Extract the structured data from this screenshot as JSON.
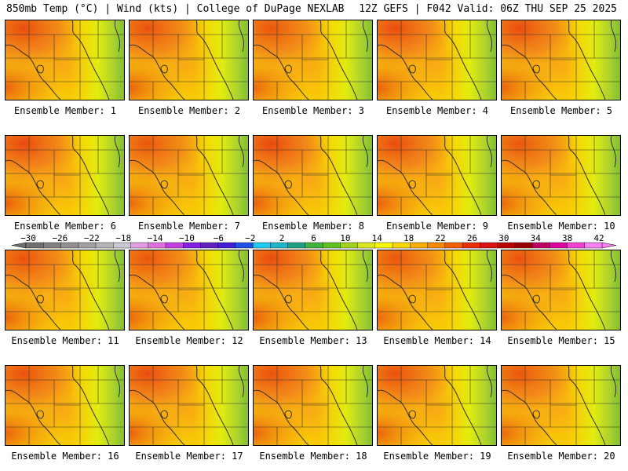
{
  "header": {
    "left": "850mb Temp (°C) | Wind (kts) | College of DuPage NEXLAB",
    "right": "12Z GEFS | F042 Valid: 06Z THU SEP 25 2025"
  },
  "member_label_prefix": "Ensemble Member: ",
  "members": [
    {
      "id": "1",
      "warmth": 0.55
    },
    {
      "id": "2",
      "warmth": 0.5
    },
    {
      "id": "3",
      "warmth": 0.45
    },
    {
      "id": "4",
      "warmth": 0.55
    },
    {
      "id": "5",
      "warmth": 0.55
    },
    {
      "id": "6",
      "warmth": 0.6
    },
    {
      "id": "7",
      "warmth": 0.45
    },
    {
      "id": "8",
      "warmth": 0.6
    },
    {
      "id": "9",
      "warmth": 0.55
    },
    {
      "id": "10",
      "warmth": 0.45
    },
    {
      "id": "11",
      "warmth": 0.5
    },
    {
      "id": "12",
      "warmth": 0.45
    },
    {
      "id": "13",
      "warmth": 0.55
    },
    {
      "id": "14",
      "warmth": 0.45
    },
    {
      "id": "15",
      "warmth": 0.5
    },
    {
      "id": "16",
      "warmth": 0.5
    },
    {
      "id": "17",
      "warmth": 0.55
    },
    {
      "id": "18",
      "warmth": 0.5
    },
    {
      "id": "19",
      "warmth": 0.5
    },
    {
      "id": "20",
      "warmth": 0.45
    }
  ],
  "colorbar": {
    "labels": [
      "−30",
      "−26",
      "−22",
      "−18",
      "−14",
      "−10",
      "−6",
      "−2",
      "2",
      "6",
      "10",
      "14",
      "18",
      "22",
      "26",
      "30",
      "34",
      "38",
      "42"
    ],
    "colors": [
      "#707070",
      "#808080",
      "#909090",
      "#a0a0a0",
      "#b4b4b4",
      "#c8c8d4",
      "#e0a0e0",
      "#e070e0",
      "#c040e0",
      "#8020e0",
      "#6020c0",
      "#4020d0",
      "#2050e8",
      "#1ec8f0",
      "#20b4c8",
      "#20a080",
      "#40b040",
      "#60c020",
      "#a0d020",
      "#d8e820",
      "#f8f800",
      "#f8d800",
      "#f8b000",
      "#f88800",
      "#f06000",
      "#e83000",
      "#d81010",
      "#b80000",
      "#980000",
      "#c00060",
      "#e000a0",
      "#f040d0",
      "#f880f0"
    ]
  }
}
